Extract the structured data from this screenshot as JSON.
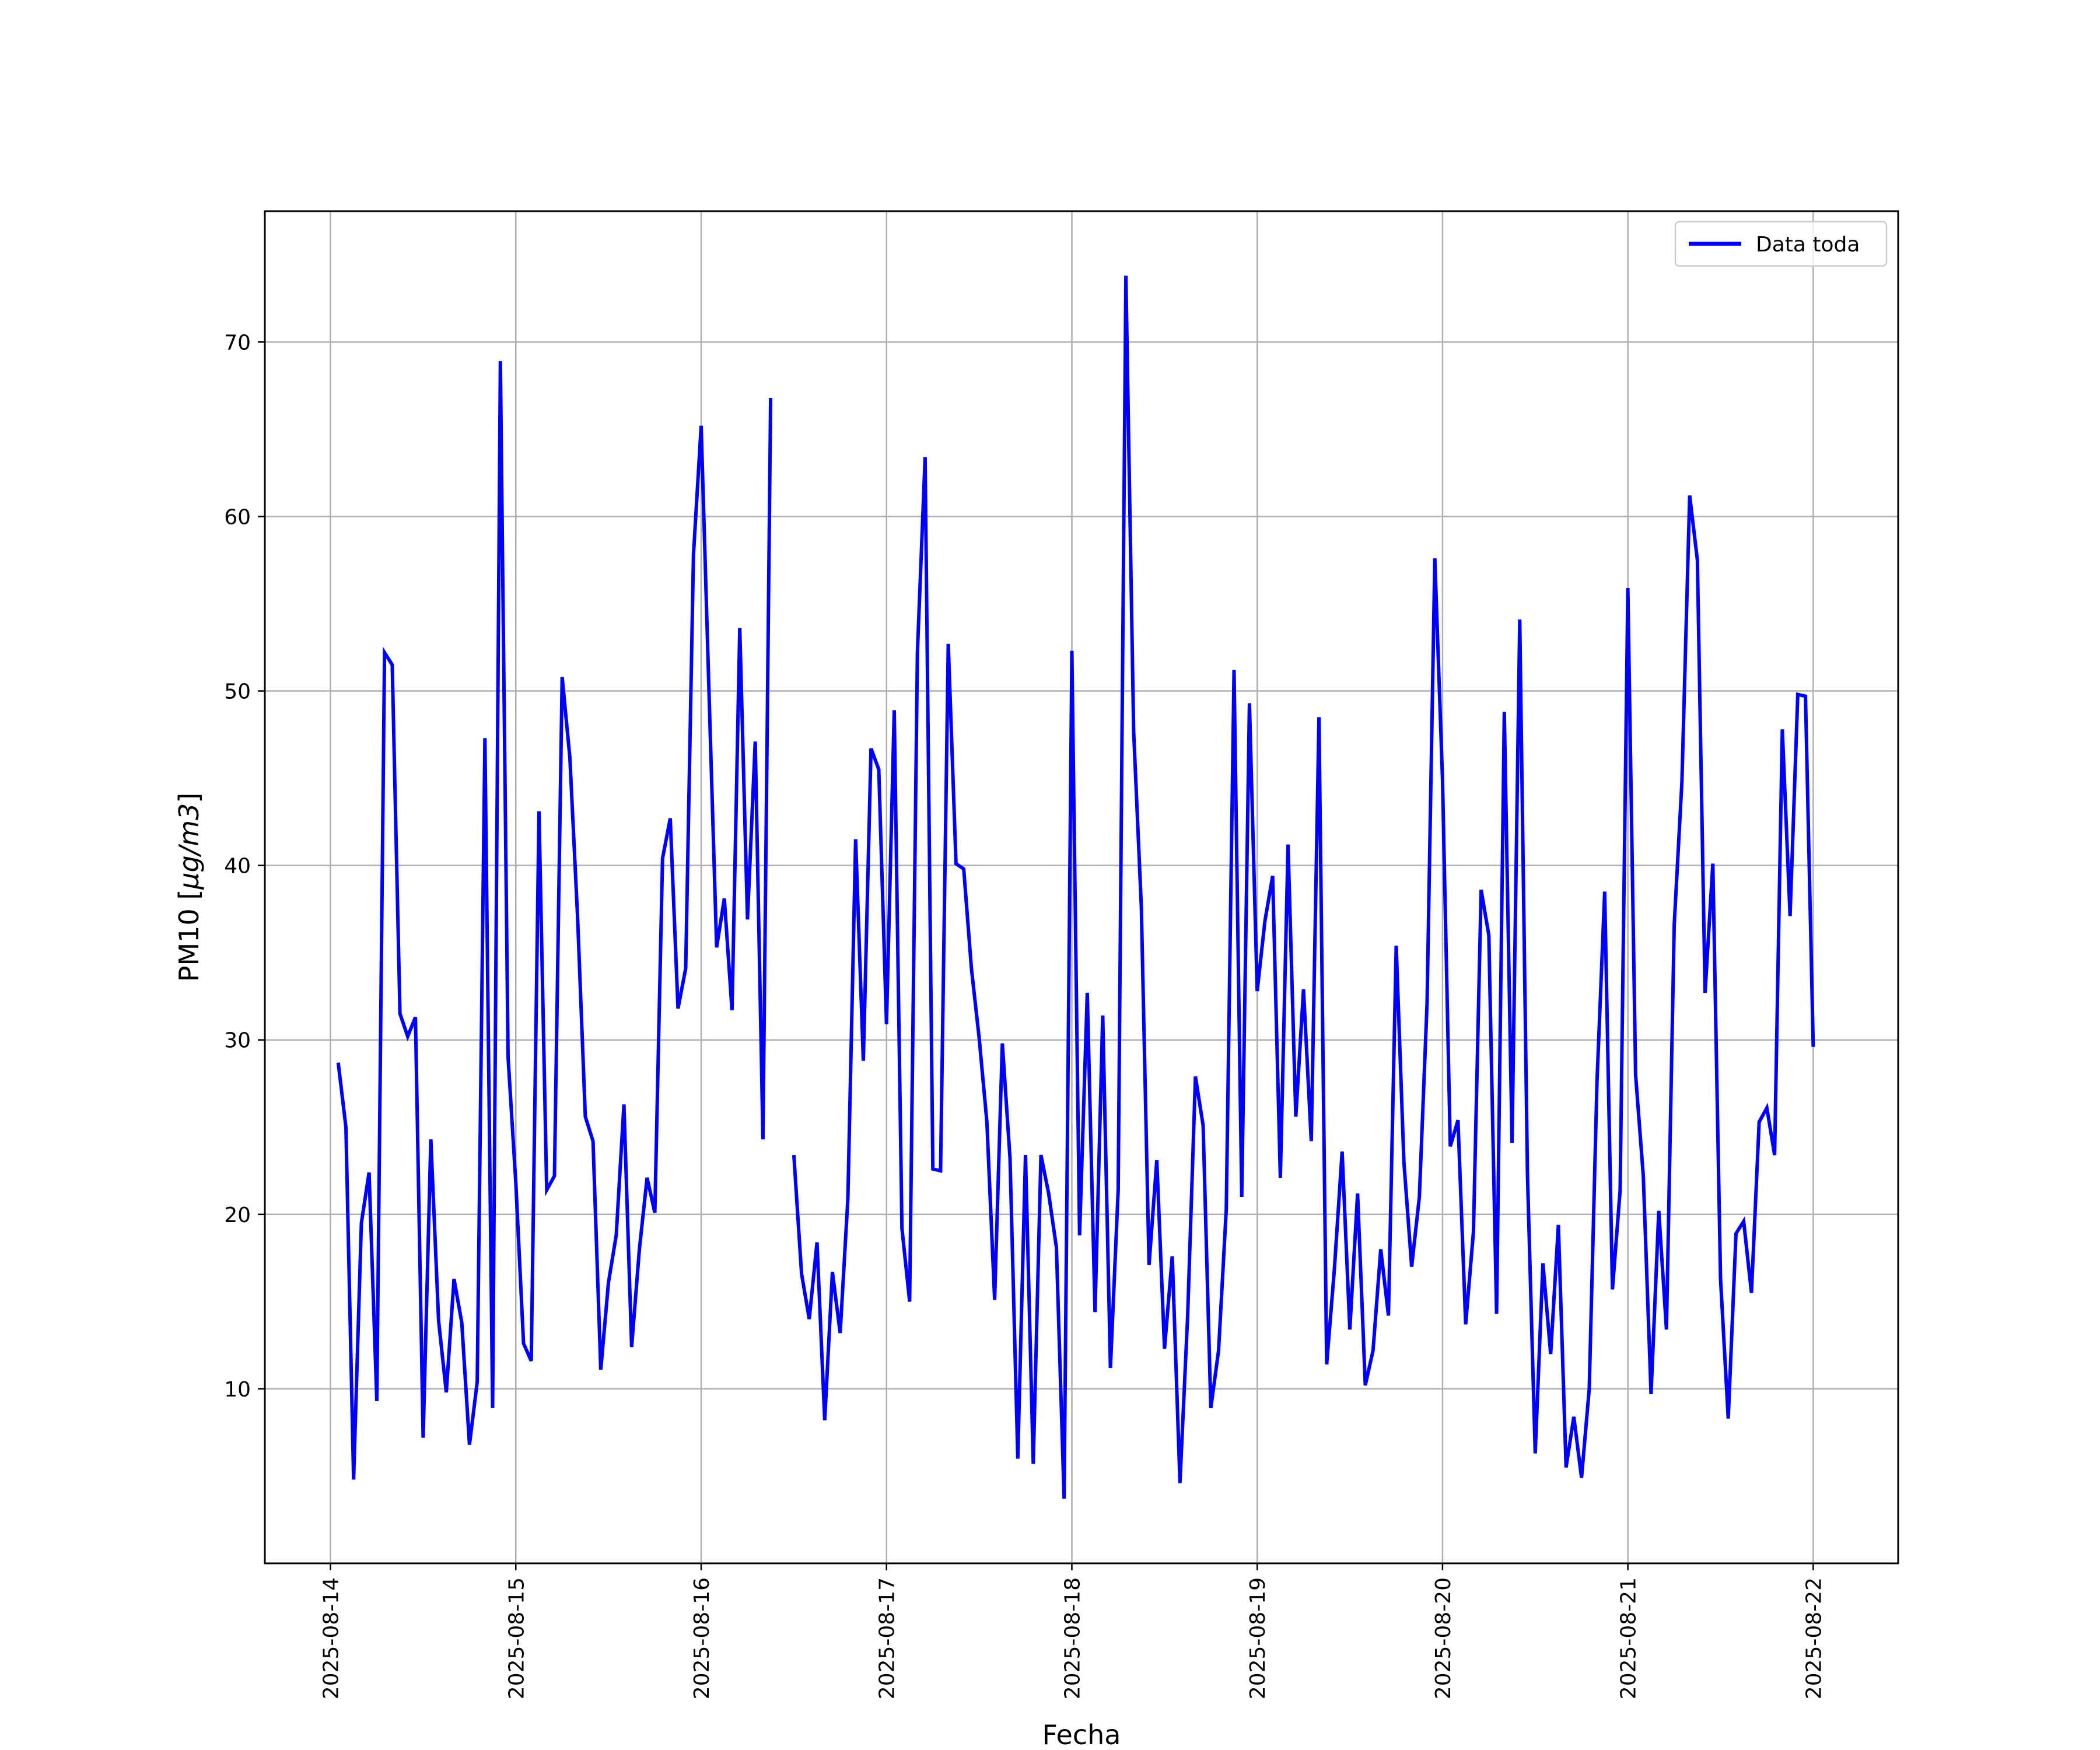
{
  "chart_data": {
    "type": "line",
    "xlabel": "Fecha",
    "ylabel_main": "PM10 [",
    "ylabel_unit": "μg/m3",
    "ylabel_close": "]",
    "ylim": [
      0.0,
      77.5
    ],
    "yticks": [
      10,
      20,
      30,
      40,
      50,
      60,
      70
    ],
    "xlim": [
      "2025-08-13T15:30",
      "2025-08-22T11:00"
    ],
    "xticks": [
      "2025-08-14",
      "2025-08-15",
      "2025-08-16",
      "2025-08-17",
      "2025-08-18",
      "2025-08-19",
      "2025-08-20",
      "2025-08-21",
      "2025-08-22"
    ],
    "grid": true,
    "legend_position": "top-right",
    "colors": {
      "series": "#0000ff",
      "grid": "#b0b0b0"
    },
    "series": [
      {
        "name": "Data toda",
        "points": [
          [
            "2025-08-14T01:00",
            28.7
          ],
          [
            "2025-08-14T02:00",
            25.0
          ],
          [
            "2025-08-14T03:00",
            4.8
          ],
          [
            "2025-08-14T04:00",
            19.5
          ],
          [
            "2025-08-14T05:00",
            22.4
          ],
          [
            "2025-08-14T06:00",
            9.3
          ],
          [
            "2025-08-14T07:00",
            52.2
          ],
          [
            "2025-08-14T08:00",
            51.5
          ],
          [
            "2025-08-14T09:00",
            31.5
          ],
          [
            "2025-08-14T10:00",
            30.2
          ],
          [
            "2025-08-14T11:00",
            31.3
          ],
          [
            "2025-08-14T12:00",
            7.2
          ],
          [
            "2025-08-14T13:00",
            24.3
          ],
          [
            "2025-08-14T14:00",
            13.9
          ],
          [
            "2025-08-14T15:00",
            9.8
          ],
          [
            "2025-08-14T16:00",
            16.3
          ],
          [
            "2025-08-14T17:00",
            13.8
          ],
          [
            "2025-08-14T18:00",
            6.8
          ],
          [
            "2025-08-14T19:00",
            10.4
          ],
          [
            "2025-08-14T20:00",
            47.3
          ],
          [
            "2025-08-14T21:00",
            8.9
          ],
          [
            "2025-08-14T22:00",
            68.9
          ],
          [
            "2025-08-14T23:00",
            29.0
          ],
          [
            "2025-08-15T00:00",
            21.8
          ],
          [
            "2025-08-15T01:00",
            12.6
          ],
          [
            "2025-08-15T02:00",
            11.6
          ],
          [
            "2025-08-15T03:00",
            43.1
          ],
          [
            "2025-08-15T04:00",
            21.4
          ],
          [
            "2025-08-15T05:00",
            22.2
          ],
          [
            "2025-08-15T06:00",
            50.8
          ],
          [
            "2025-08-15T07:00",
            46.2
          ],
          [
            "2025-08-15T08:00",
            37.0
          ],
          [
            "2025-08-15T09:00",
            25.6
          ],
          [
            "2025-08-15T10:00",
            24.2
          ],
          [
            "2025-08-15T11:00",
            11.1
          ],
          [
            "2025-08-15T12:00",
            16.1
          ],
          [
            "2025-08-15T13:00",
            18.8
          ],
          [
            "2025-08-15T14:00",
            26.3
          ],
          [
            "2025-08-15T15:00",
            12.4
          ],
          [
            "2025-08-15T16:00",
            18.0
          ],
          [
            "2025-08-15T17:00",
            22.1
          ],
          [
            "2025-08-15T18:00",
            20.1
          ],
          [
            "2025-08-15T19:00",
            40.4
          ],
          [
            "2025-08-15T20:00",
            42.7
          ],
          [
            "2025-08-15T21:00",
            31.8
          ],
          [
            "2025-08-15T22:00",
            34.1
          ],
          [
            "2025-08-15T23:00",
            57.8
          ],
          [
            "2025-08-16T00:00",
            65.2
          ],
          [
            "2025-08-16T01:00",
            50.2
          ],
          [
            "2025-08-16T02:00",
            35.3
          ],
          [
            "2025-08-16T03:00",
            38.1
          ],
          [
            "2025-08-16T04:00",
            31.7
          ],
          [
            "2025-08-16T05:00",
            53.6
          ],
          [
            "2025-08-16T06:00",
            36.9
          ],
          [
            "2025-08-16T07:00",
            47.1
          ],
          [
            "2025-08-16T08:00",
            24.3
          ],
          [
            "2025-08-16T09:00",
            66.8
          ],
          null,
          [
            "2025-08-16T12:00",
            23.4
          ],
          [
            "2025-08-16T13:00",
            16.6
          ],
          [
            "2025-08-16T14:00",
            14.0
          ],
          [
            "2025-08-16T15:00",
            18.4
          ],
          [
            "2025-08-16T16:00",
            8.2
          ],
          [
            "2025-08-16T17:00",
            16.7
          ],
          [
            "2025-08-16T18:00",
            13.2
          ],
          [
            "2025-08-16T19:00",
            20.9
          ],
          [
            "2025-08-16T20:00",
            41.5
          ],
          [
            "2025-08-16T21:00",
            28.8
          ],
          [
            "2025-08-16T22:00",
            46.7
          ],
          [
            "2025-08-16T23:00",
            45.5
          ],
          [
            "2025-08-17T00:00",
            30.9
          ],
          [
            "2025-08-17T01:00",
            48.9
          ],
          [
            "2025-08-17T02:00",
            19.2
          ],
          [
            "2025-08-17T03:00",
            15.0
          ],
          [
            "2025-08-17T04:00",
            52.2
          ],
          [
            "2025-08-17T05:00",
            63.4
          ],
          [
            "2025-08-17T06:00",
            22.6
          ],
          [
            "2025-08-17T07:00",
            22.5
          ],
          [
            "2025-08-17T08:00",
            52.7
          ],
          [
            "2025-08-17T09:00",
            40.1
          ],
          [
            "2025-08-17T10:00",
            39.8
          ],
          [
            "2025-08-17T11:00",
            34.1
          ],
          [
            "2025-08-17T12:00",
            30.1
          ],
          [
            "2025-08-17T13:00",
            25.3
          ],
          [
            "2025-08-17T14:00",
            15.1
          ],
          [
            "2025-08-17T15:00",
            29.8
          ],
          [
            "2025-08-17T16:00",
            23.2
          ],
          [
            "2025-08-17T17:00",
            6.0
          ],
          [
            "2025-08-17T18:00",
            23.4
          ],
          [
            "2025-08-17T19:00",
            5.7
          ],
          [
            "2025-08-17T20:00",
            23.4
          ],
          [
            "2025-08-17T21:00",
            21.2
          ],
          [
            "2025-08-17T22:00",
            18.1
          ],
          [
            "2025-08-17T23:00",
            3.7
          ],
          [
            "2025-08-18T00:00",
            52.3
          ],
          [
            "2025-08-18T01:00",
            18.8
          ],
          [
            "2025-08-18T02:00",
            32.7
          ],
          [
            "2025-08-18T03:00",
            14.4
          ],
          [
            "2025-08-18T04:00",
            31.4
          ],
          [
            "2025-08-18T05:00",
            11.2
          ],
          [
            "2025-08-18T06:00",
            21.4
          ],
          [
            "2025-08-18T07:00",
            73.8
          ],
          [
            "2025-08-18T08:00",
            47.7
          ],
          [
            "2025-08-18T09:00",
            37.6
          ],
          [
            "2025-08-18T10:00",
            17.1
          ],
          [
            "2025-08-18T11:00",
            23.1
          ],
          [
            "2025-08-18T12:00",
            12.3
          ],
          [
            "2025-08-18T13:00",
            17.6
          ],
          [
            "2025-08-18T14:00",
            4.6
          ],
          [
            "2025-08-18T15:00",
            14.2
          ],
          [
            "2025-08-18T16:00",
            27.9
          ],
          [
            "2025-08-18T17:00",
            25.1
          ],
          [
            "2025-08-18T18:00",
            8.9
          ],
          [
            "2025-08-18T19:00",
            12.2
          ],
          [
            "2025-08-18T20:00",
            20.3
          ],
          [
            "2025-08-18T21:00",
            51.2
          ],
          [
            "2025-08-18T22:00",
            21.0
          ],
          [
            "2025-08-18T23:00",
            49.3
          ],
          [
            "2025-08-19T00:00",
            32.8
          ],
          [
            "2025-08-19T01:00",
            36.8
          ],
          [
            "2025-08-19T02:00",
            39.4
          ],
          [
            "2025-08-19T03:00",
            22.1
          ],
          [
            "2025-08-19T04:00",
            41.2
          ],
          [
            "2025-08-19T05:00",
            25.6
          ],
          [
            "2025-08-19T06:00",
            32.9
          ],
          [
            "2025-08-19T07:00",
            24.2
          ],
          [
            "2025-08-19T08:00",
            48.5
          ],
          [
            "2025-08-19T09:00",
            11.4
          ],
          [
            "2025-08-19T10:00",
            16.9
          ],
          [
            "2025-08-19T11:00",
            23.6
          ],
          [
            "2025-08-19T12:00",
            13.4
          ],
          [
            "2025-08-19T13:00",
            21.2
          ],
          [
            "2025-08-19T14:00",
            10.2
          ],
          [
            "2025-08-19T15:00",
            12.2
          ],
          [
            "2025-08-19T16:00",
            18.0
          ],
          [
            "2025-08-19T17:00",
            14.2
          ],
          [
            "2025-08-19T18:00",
            35.4
          ],
          [
            "2025-08-19T19:00",
            23.0
          ],
          [
            "2025-08-19T20:00",
            17.0
          ],
          [
            "2025-08-19T21:00",
            21.0
          ],
          [
            "2025-08-19T22:00",
            32.1
          ],
          [
            "2025-08-19T23:00",
            57.6
          ],
          [
            "2025-08-20T00:00",
            44.9
          ],
          [
            "2025-08-20T01:00",
            23.9
          ],
          [
            "2025-08-20T02:00",
            25.4
          ],
          [
            "2025-08-20T03:00",
            13.7
          ],
          [
            "2025-08-20T04:00",
            19.0
          ],
          [
            "2025-08-20T05:00",
            38.6
          ],
          [
            "2025-08-20T06:00",
            36.0
          ],
          [
            "2025-08-20T07:00",
            14.3
          ],
          [
            "2025-08-20T08:00",
            48.8
          ],
          [
            "2025-08-20T09:00",
            24.1
          ],
          [
            "2025-08-20T10:00",
            54.1
          ],
          [
            "2025-08-20T11:00",
            22.3
          ],
          [
            "2025-08-20T12:00",
            6.3
          ],
          [
            "2025-08-20T13:00",
            17.2
          ],
          [
            "2025-08-20T14:00",
            12.0
          ],
          [
            "2025-08-20T15:00",
            19.4
          ],
          [
            "2025-08-20T16:00",
            5.5
          ],
          [
            "2025-08-20T17:00",
            8.4
          ],
          [
            "2025-08-20T18:00",
            4.9
          ],
          [
            "2025-08-20T19:00",
            10.0
          ],
          [
            "2025-08-20T20:00",
            27.6
          ],
          [
            "2025-08-20T21:00",
            38.5
          ],
          [
            "2025-08-20T22:00",
            15.7
          ],
          [
            "2025-08-20T23:00",
            21.4
          ],
          [
            "2025-08-21T00:00",
            55.9
          ],
          [
            "2025-08-21T01:00",
            28.0
          ],
          [
            "2025-08-21T02:00",
            22.2
          ],
          [
            "2025-08-21T03:00",
            9.7
          ],
          [
            "2025-08-21T04:00",
            20.2
          ],
          [
            "2025-08-21T05:00",
            13.4
          ],
          [
            "2025-08-21T06:00",
            36.6
          ],
          [
            "2025-08-21T07:00",
            44.8
          ],
          [
            "2025-08-21T08:00",
            61.2
          ],
          [
            "2025-08-21T09:00",
            57.5
          ],
          [
            "2025-08-21T10:00",
            32.7
          ],
          [
            "2025-08-21T11:00",
            40.1
          ],
          [
            "2025-08-21T12:00",
            16.3
          ],
          [
            "2025-08-21T13:00",
            8.3
          ],
          [
            "2025-08-21T14:00",
            18.9
          ],
          [
            "2025-08-21T15:00",
            19.6
          ],
          [
            "2025-08-21T16:00",
            15.5
          ],
          [
            "2025-08-21T17:00",
            25.3
          ],
          [
            "2025-08-21T18:00",
            26.1
          ],
          [
            "2025-08-21T19:00",
            23.4
          ],
          [
            "2025-08-21T20:00",
            47.8
          ],
          [
            "2025-08-21T21:00",
            37.1
          ],
          [
            "2025-08-21T22:00",
            49.8
          ],
          [
            "2025-08-21T23:00",
            49.7
          ],
          [
            "2025-08-22T00:00",
            29.6
          ]
        ]
      }
    ]
  }
}
